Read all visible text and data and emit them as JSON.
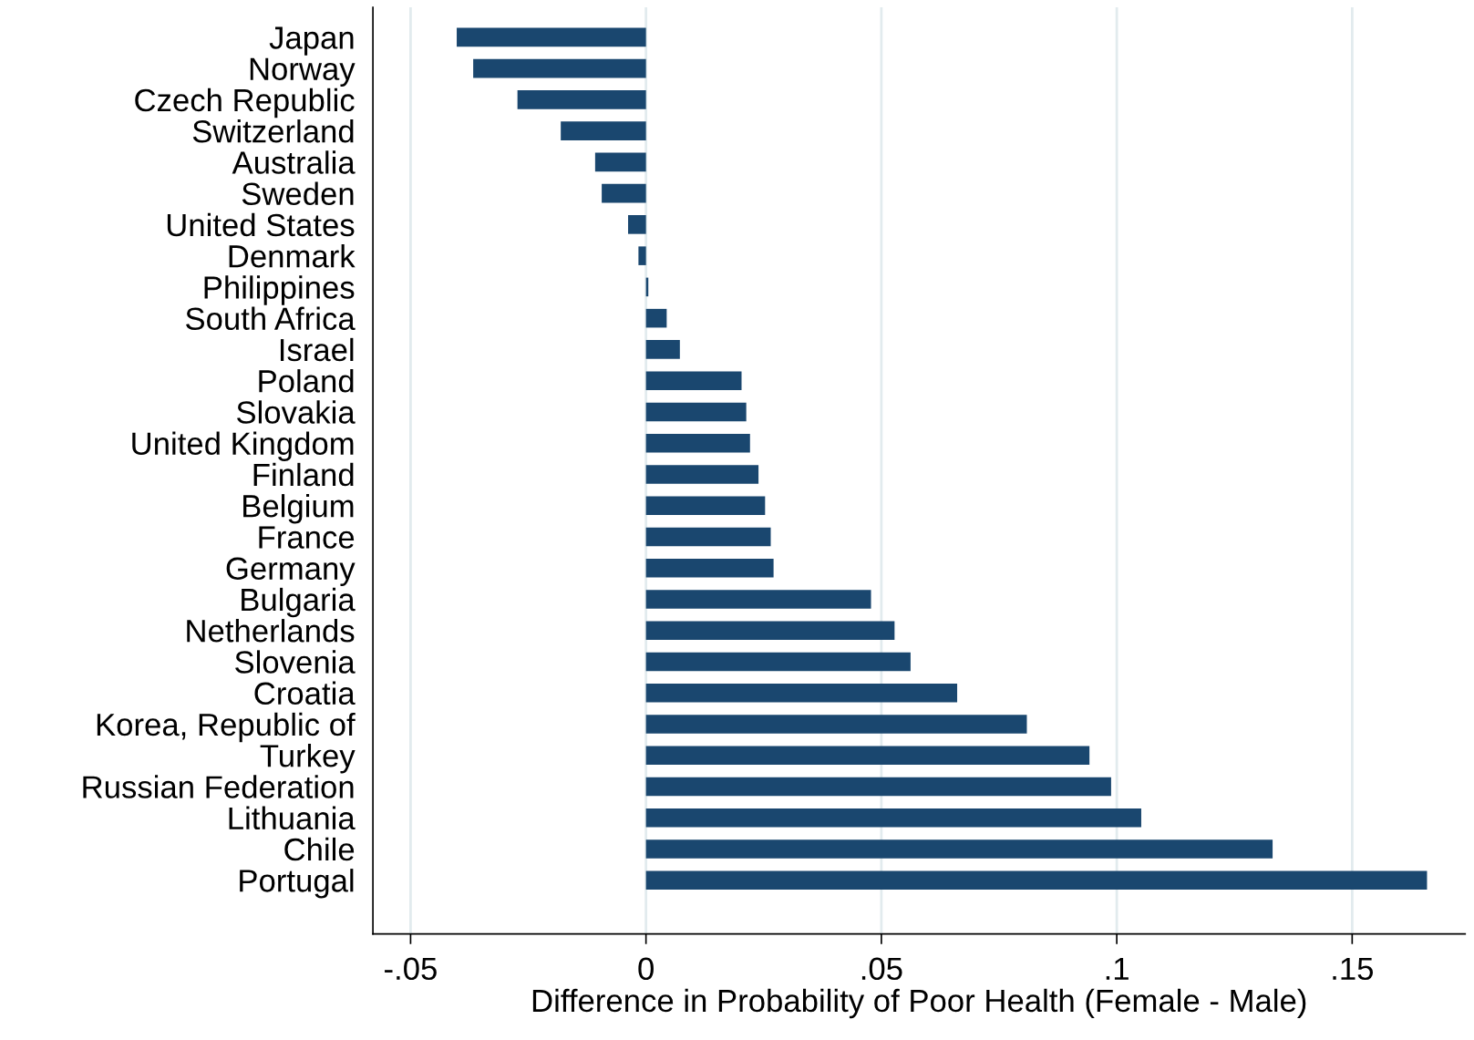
{
  "chart_data": {
    "type": "bar",
    "orientation": "horizontal",
    "xlabel": "Difference in Probability of Poor Health (Female - Male)",
    "categories": [
      "Japan",
      "Norway",
      "Czech Republic",
      "Switzerland",
      "Australia",
      "Sweden",
      "United States",
      "Denmark",
      "Philippines",
      "South Africa",
      "Israel",
      "Poland",
      "Slovakia",
      "United Kingdom",
      "Finland",
      "Belgium",
      "France",
      "Germany",
      "Bulgaria",
      "Netherlands",
      "Slovenia",
      "Croatia",
      "Korea, Republic of",
      "Turkey",
      "Russian Federation",
      "Lithuania",
      "Chile",
      "Portugal"
    ],
    "values": [
      -0.0402,
      -0.0367,
      -0.0273,
      -0.0181,
      -0.0108,
      -0.0094,
      -0.0038,
      -0.0016,
      0.0005,
      0.0044,
      0.0072,
      0.0203,
      0.0213,
      0.0221,
      0.0239,
      0.0253,
      0.0265,
      0.0271,
      0.0478,
      0.0528,
      0.0562,
      0.0661,
      0.0809,
      0.0942,
      0.0988,
      0.1052,
      0.1331,
      0.1659
    ],
    "color": "#1a476f",
    "xlim": [
      -0.058,
      0.174
    ],
    "xticks": [
      {
        "value": -0.05,
        "label": "-.05"
      },
      0,
      {
        "value": 0.05,
        "label": ".05"
      },
      {
        "value": 0.1,
        "label": ".1"
      },
      {
        "value": 0.15,
        "label": ".15"
      }
    ],
    "grid": "x",
    "legend": false
  }
}
